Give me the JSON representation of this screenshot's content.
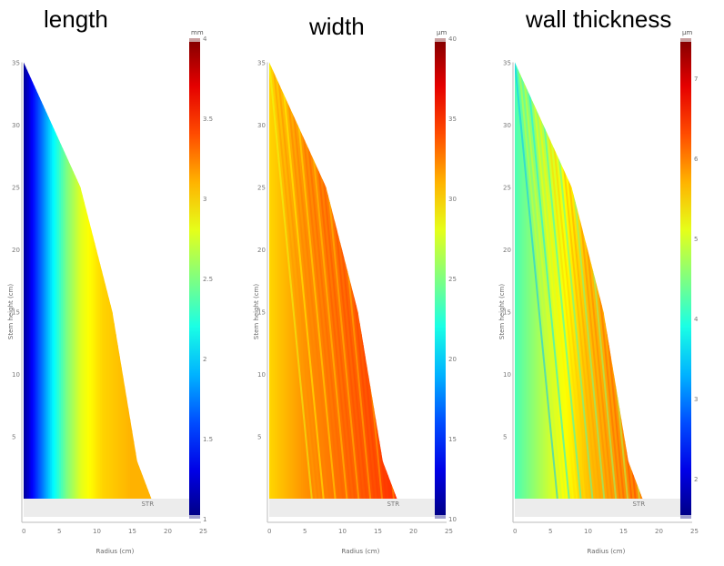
{
  "chart_data": [
    {
      "type": "heatmap",
      "title": "length",
      "colorbar": {
        "unit": "mm",
        "ticks": [
          "1",
          "1.5",
          "2",
          "2.5",
          "3",
          "3.5",
          "4"
        ],
        "range": [
          1,
          4
        ],
        "colormap": "jet"
      },
      "xlabel": "Radius (cm)",
      "ylabel": "Stem height (cm)",
      "xlim": [
        0,
        25
      ],
      "ylim": [
        0,
        35
      ],
      "x_ticks": [
        "0",
        "5",
        "10",
        "15",
        "20",
        "25"
      ],
      "y_ticks": [
        "5",
        "10",
        "15",
        "20",
        "25",
        "30",
        "35"
      ],
      "annotation": "STR",
      "profile": [
        {
          "height": 35,
          "radius": 0
        },
        {
          "height": 25,
          "radius": 8
        },
        {
          "height": 15,
          "radius": 12.5
        },
        {
          "height": 3,
          "radius": 16
        },
        {
          "height": 0,
          "radius": 18
        }
      ],
      "value_by_radius": [
        {
          "radius": 0,
          "value": 1.1
        },
        {
          "radius": 2,
          "value": 1.6
        },
        {
          "radius": 4,
          "value": 2.1
        },
        {
          "radius": 6,
          "value": 2.5
        },
        {
          "radius": 8,
          "value": 2.8
        },
        {
          "radius": 11,
          "value": 3.0
        },
        {
          "radius": 15,
          "value": 3.1
        },
        {
          "radius": 18,
          "value": 3.1
        }
      ]
    },
    {
      "type": "heatmap",
      "title": "width",
      "colorbar": {
        "unit": "μm",
        "ticks": [
          "10",
          "15",
          "20",
          "25",
          "30",
          "35",
          "40"
        ],
        "range": [
          10,
          40
        ],
        "colormap": "jet"
      },
      "xlabel": "Radius (cm)",
      "ylabel": "Stem height (cm)",
      "xlim": [
        0,
        25
      ],
      "ylim": [
        0,
        35
      ],
      "x_ticks": [
        "0",
        "5",
        "10",
        "15",
        "20",
        "25"
      ],
      "y_ticks": [
        "5",
        "10",
        "15",
        "20",
        "25",
        "30",
        "35"
      ],
      "annotation": "STR",
      "profile": [
        {
          "height": 35,
          "radius": 0
        },
        {
          "height": 25,
          "radius": 8
        },
        {
          "height": 15,
          "radius": 12.5
        },
        {
          "height": 3,
          "radius": 16
        },
        {
          "height": 0,
          "radius": 18
        }
      ],
      "value_by_radius": [
        {
          "radius": 0,
          "value": 30
        },
        {
          "radius": 5,
          "value": 32
        },
        {
          "radius": 10,
          "value": 33
        },
        {
          "radius": 15,
          "value": 34
        },
        {
          "radius": 18,
          "value": 35
        }
      ]
    },
    {
      "type": "heatmap",
      "title": "wall thickness",
      "colorbar": {
        "unit": "μm",
        "ticks": [
          "2",
          "3",
          "4",
          "5",
          "6",
          "7"
        ],
        "range": [
          1.5,
          7.5
        ],
        "colormap": "jet"
      },
      "xlabel": "Radius (cm)",
      "ylabel": "Stem height (cm)",
      "xlim": [
        0,
        25
      ],
      "ylim": [
        0,
        35
      ],
      "x_ticks": [
        "0",
        "5",
        "10",
        "15",
        "20",
        "25"
      ],
      "y_ticks": [
        "5",
        "10",
        "15",
        "20",
        "25",
        "30",
        "35"
      ],
      "annotation": "STR",
      "profile": [
        {
          "height": 35,
          "radius": 0
        },
        {
          "height": 25,
          "radius": 8
        },
        {
          "height": 15,
          "radius": 12.5
        },
        {
          "height": 3,
          "radius": 16
        },
        {
          "height": 0,
          "radius": 18
        }
      ],
      "value_by_radius": [
        {
          "radius": 0,
          "value": 4.2
        },
        {
          "radius": 5,
          "value": 5.0
        },
        {
          "radius": 10,
          "value": 5.6
        },
        {
          "radius": 15,
          "value": 5.9
        },
        {
          "radius": 18,
          "value": 6.0
        }
      ]
    }
  ]
}
